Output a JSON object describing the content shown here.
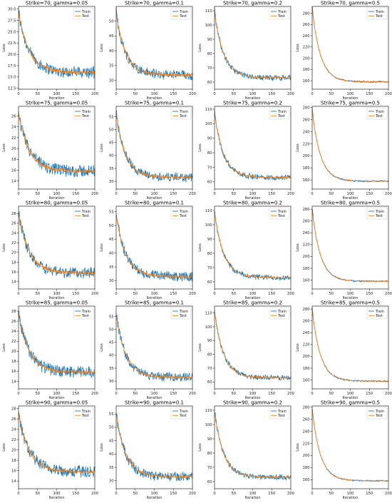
{
  "chart_data": {
    "type": "line",
    "layout": "5x4 grid of line charts",
    "xlabel": "Iteration",
    "ylabel": "Loss",
    "legend": {
      "placement": "top-right",
      "entries": [
        "Train",
        "Test"
      ]
    },
    "colors": {
      "train": "#1f77b4",
      "test": "#ff7f0e"
    },
    "xlim": [
      0,
      200
    ],
    "xticks": [
      0,
      50,
      100,
      150,
      200
    ],
    "iterations": 200,
    "subplots": [
      [
        {
          "title": "Strike=70, gamma=0.05",
          "ylim": [
            12.3,
            30.6
          ],
          "yticks": [
            12.5,
            15.0,
            17.5,
            20.0,
            22.5,
            25.0,
            27.5,
            30.0
          ],
          "ytick_labels": [
            "12.5",
            "15.0",
            "17.5",
            "20.0",
            "22.5",
            "25.0",
            "27.5",
            "30.0"
          ],
          "test_start": 29.2,
          "test_end": 16.0,
          "tau": 28,
          "noise": 1.2
        },
        {
          "title": "Strike=70, gamma=0.1",
          "ylim": [
            27,
            55
          ],
          "yticks": [
            30,
            35,
            40,
            45,
            50
          ],
          "ytick_labels": [
            "30",
            "35",
            "40",
            "45",
            "50"
          ],
          "test_start": 52.5,
          "test_end": 31.8,
          "tau": 25,
          "noise": 1.6
        },
        {
          "title": "Strike=70, gamma=0.2",
          "ylim": [
            55,
            113
          ],
          "yticks": [
            60,
            70,
            80,
            90,
            100,
            110
          ],
          "ytick_labels": [
            "60",
            "70",
            "80",
            "90",
            "100",
            "110"
          ],
          "test_start": 109,
          "test_end": 63,
          "tau": 24,
          "noise": 1.8
        },
        {
          "title": "Strike=70, gamma=0.5",
          "ylim": [
            145,
            292
          ],
          "yticks": [
            160,
            180,
            200,
            220,
            240,
            260,
            280
          ],
          "ytick_labels": [
            "160",
            "180",
            "200",
            "220",
            "240",
            "260",
            "280"
          ],
          "test_start": 288,
          "test_end": 158,
          "tau": 22,
          "noise": 1.3
        }
      ],
      [
        {
          "title": "Strike=75, gamma=0.05",
          "ylim": [
            12.5,
            27.8
          ],
          "yticks": [
            14,
            16,
            18,
            20,
            22,
            24,
            26
          ],
          "ytick_labels": [
            "14",
            "16",
            "18",
            "20",
            "22",
            "24",
            "26"
          ],
          "test_start": 26.5,
          "test_end": 15.8,
          "tau": 28,
          "noise": 1.1
        },
        {
          "title": "Strike=75, gamma=0.1",
          "ylim": [
            27,
            59
          ],
          "yticks": [
            30,
            35,
            40,
            45,
            50,
            55
          ],
          "ytick_labels": [
            "30",
            "35",
            "40",
            "45",
            "50",
            "55"
          ],
          "test_start": 56,
          "test_end": 31.5,
          "tau": 25,
          "noise": 1.6
        },
        {
          "title": "Strike=75, gamma=0.2",
          "ylim": [
            55,
            112
          ],
          "yticks": [
            60,
            70,
            80,
            90,
            100,
            110
          ],
          "ytick_labels": [
            "60",
            "70",
            "80",
            "90",
            "100",
            "110"
          ],
          "test_start": 107,
          "test_end": 63,
          "tau": 24,
          "noise": 1.8
        },
        {
          "title": "Strike=75, gamma=0.5",
          "ylim": [
            145,
            282
          ],
          "yticks": [
            160,
            180,
            200,
            220,
            240,
            260,
            280
          ],
          "ytick_labels": [
            "160",
            "180",
            "200",
            "220",
            "240",
            "260",
            "280"
          ],
          "test_start": 275,
          "test_end": 158,
          "tau": 22,
          "noise": 1.3
        }
      ],
      [
        {
          "title": "Strike=80, gamma=0.05",
          "ylim": [
            12.5,
            29.5
          ],
          "yticks": [
            14,
            16,
            18,
            20,
            22,
            24,
            26,
            28
          ],
          "ytick_labels": [
            "14",
            "16",
            "18",
            "20",
            "22",
            "24",
            "26",
            "28"
          ],
          "test_start": 28,
          "test_end": 15.8,
          "tau": 28,
          "noise": 1.1
        },
        {
          "title": "Strike=80, gamma=0.1",
          "ylim": [
            27,
            57
          ],
          "yticks": [
            30,
            35,
            40,
            45,
            50,
            55
          ],
          "ytick_labels": [
            "30",
            "35",
            "40",
            "45",
            "50",
            "55"
          ],
          "test_start": 54,
          "test_end": 31.5,
          "tau": 25,
          "noise": 1.6
        },
        {
          "title": "Strike=80, gamma=0.2",
          "ylim": [
            55,
            113
          ],
          "yticks": [
            60,
            70,
            80,
            90,
            100,
            110
          ],
          "ytick_labels": [
            "60",
            "70",
            "80",
            "90",
            "100",
            "110"
          ],
          "test_start": 109,
          "test_end": 63,
          "tau": 24,
          "noise": 1.8
        },
        {
          "title": "Strike=80, gamma=0.5",
          "ylim": [
            145,
            285
          ],
          "yticks": [
            160,
            180,
            200,
            220,
            240,
            260,
            280
          ],
          "ytick_labels": [
            "160",
            "180",
            "200",
            "220",
            "240",
            "260",
            "280"
          ],
          "test_start": 278,
          "test_end": 158,
          "tau": 22,
          "noise": 1.3
        }
      ],
      [
        {
          "title": "Strike=85, gamma=0.05",
          "ylim": [
            12.5,
            29
          ],
          "yticks": [
            14,
            16,
            18,
            20,
            22,
            24,
            26,
            28
          ],
          "ytick_labels": [
            "14",
            "16",
            "18",
            "20",
            "22",
            "24",
            "26",
            "28"
          ],
          "test_start": 27.5,
          "test_end": 15.8,
          "tau": 28,
          "noise": 1.1
        },
        {
          "title": "Strike=85, gamma=0.1",
          "ylim": [
            27,
            59
          ],
          "yticks": [
            30,
            35,
            40,
            45,
            50,
            55
          ],
          "ytick_labels": [
            "30",
            "35",
            "40",
            "45",
            "50",
            "55"
          ],
          "test_start": 56,
          "test_end": 31.5,
          "tau": 25,
          "noise": 1.6
        },
        {
          "title": "Strike=85, gamma=0.2",
          "ylim": [
            55,
            115
          ],
          "yticks": [
            60,
            70,
            80,
            90,
            100,
            110
          ],
          "ytick_labels": [
            "60",
            "70",
            "80",
            "90",
            "100",
            "110"
          ],
          "test_start": 111,
          "test_end": 63,
          "tau": 24,
          "noise": 1.8
        },
        {
          "title": "Strike=85, gamma=0.5",
          "ylim": [
            145,
            285
          ],
          "yticks": [
            160,
            180,
            200,
            220,
            240,
            260,
            280
          ],
          "ytick_labels": [
            "160",
            "180",
            "200",
            "220",
            "240",
            "260",
            "280"
          ],
          "test_start": 278,
          "test_end": 158,
          "tau": 22,
          "noise": 1.3
        }
      ],
      [
        {
          "title": "Strike=90, gamma=0.05",
          "ylim": [
            12.5,
            28.5
          ],
          "yticks": [
            14,
            16,
            18,
            20,
            22,
            24,
            26,
            28
          ],
          "ytick_labels": [
            "14",
            "16",
            "18",
            "20",
            "22",
            "24",
            "26",
            "28"
          ],
          "test_start": 27,
          "test_end": 15.8,
          "tau": 28,
          "noise": 1.1
        },
        {
          "title": "Strike=90, gamma=0.1",
          "ylim": [
            27,
            58
          ],
          "yticks": [
            30,
            35,
            40,
            45,
            50,
            55
          ],
          "ytick_labels": [
            "30",
            "35",
            "40",
            "45",
            "50",
            "55"
          ],
          "test_start": 55,
          "test_end": 31.5,
          "tau": 25,
          "noise": 1.6
        },
        {
          "title": "Strike=90, gamma=0.2",
          "ylim": [
            55,
            113
          ],
          "yticks": [
            60,
            70,
            80,
            90,
            100,
            110
          ],
          "ytick_labels": [
            "60",
            "70",
            "80",
            "90",
            "100",
            "110"
          ],
          "test_start": 109,
          "test_end": 63,
          "tau": 24,
          "noise": 1.8
        },
        {
          "title": "Strike=90, gamma=0.5",
          "ylim": [
            145,
            282
          ],
          "yticks": [
            160,
            180,
            200,
            220,
            240,
            260,
            280
          ],
          "ytick_labels": [
            "160",
            "180",
            "200",
            "220",
            "240",
            "260",
            "280"
          ],
          "test_start": 275,
          "test_end": 158,
          "tau": 22,
          "noise": 1.3
        }
      ]
    ]
  }
}
